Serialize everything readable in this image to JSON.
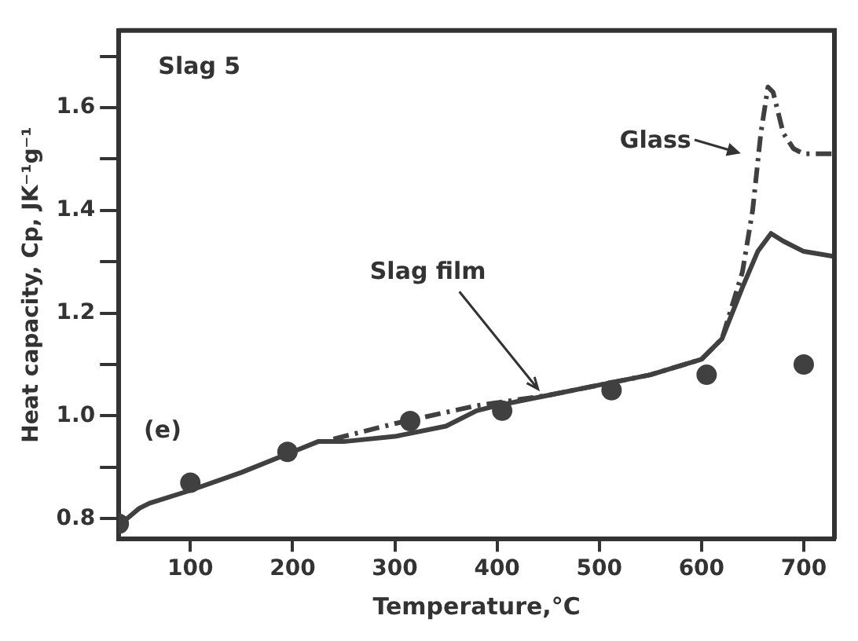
{
  "chart_data": {
    "type": "line",
    "xlabel": "Temperature,°C",
    "ylabel": "Heat capacity, Cp, JK⁻¹g⁻¹",
    "annotations": [
      "Slag 5",
      "(e)",
      {
        "text": "Slag film",
        "x": 440,
        "y": 1.04
      },
      "Glass"
    ],
    "xlim": [
      30,
      730
    ],
    "xticks": [
      100,
      200,
      300,
      400,
      500,
      600,
      700
    ],
    "ylim": [
      0.76,
      1.75
    ],
    "yticks": [
      0.8,
      {
        "value": 0.9,
        "label": null
      },
      {
        "value": 1.0,
        "label": "1.0"
      },
      {
        "value": 1.1,
        "label": null
      },
      1.2,
      {
        "value": 1.3,
        "label": null
      },
      1.4,
      {
        "value": 1.5,
        "label": null
      },
      1.6,
      {
        "value": 1.7,
        "label": null
      }
    ],
    "grid": false,
    "legend": false,
    "series": [
      {
        "type": "line",
        "color": "#404040",
        "line_style": "solid",
        "marker": "none",
        "x": [
          38,
          50,
          60,
          100,
          150,
          200,
          225,
          250,
          300,
          350,
          380,
          400,
          450,
          500,
          550,
          600,
          620,
          640,
          655,
          668,
          680,
          700,
          730
        ],
        "values": [
          0.8,
          0.82,
          0.83,
          0.855,
          0.89,
          0.93,
          0.95,
          0.95,
          0.96,
          0.98,
          1.01,
          1.02,
          1.04,
          1.06,
          1.08,
          1.11,
          1.15,
          1.25,
          1.32,
          1.355,
          1.34,
          1.32,
          1.31
        ]
      },
      {
        "type": "line",
        "color": "#404040",
        "line_style": "dashed",
        "marker": "none",
        "x": [
          240,
          300,
          380,
          450,
          500,
          550,
          600,
          620,
          640,
          650,
          658,
          665,
          670,
          680,
          690,
          700,
          730
        ],
        "values": [
          0.955,
          0.985,
          1.02,
          1.04,
          1.06,
          1.08,
          1.11,
          1.15,
          1.28,
          1.4,
          1.55,
          1.64,
          1.63,
          1.55,
          1.52,
          1.51,
          1.51
        ]
      },
      {
        "type": "scatter",
        "color": "#404040",
        "marker": "circle",
        "x": [
          30,
          100,
          195,
          315,
          405,
          512,
          605,
          700
        ],
        "values": [
          0.79,
          0.87,
          0.93,
          0.99,
          1.01,
          1.05,
          1.08,
          1.1
        ]
      }
    ]
  }
}
